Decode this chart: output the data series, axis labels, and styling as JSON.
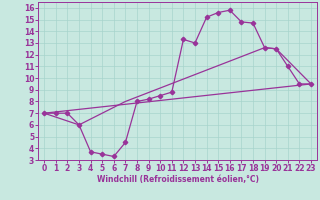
{
  "xlabel": "Windchill (Refroidissement éolien,°C)",
  "bg_color": "#c8e8e0",
  "line_color": "#993399",
  "grid_color": "#a8d4cc",
  "xlim": [
    -0.5,
    23.5
  ],
  "ylim": [
    3,
    16.5
  ],
  "xticks": [
    0,
    1,
    2,
    3,
    4,
    5,
    6,
    7,
    8,
    9,
    10,
    11,
    12,
    13,
    14,
    15,
    16,
    17,
    18,
    19,
    20,
    21,
    22,
    23
  ],
  "yticks": [
    3,
    4,
    5,
    6,
    7,
    8,
    9,
    10,
    11,
    12,
    13,
    14,
    15,
    16
  ],
  "curve1_x": [
    0,
    1,
    2,
    3,
    4,
    5,
    6,
    7,
    8,
    9,
    10,
    11,
    12,
    13,
    14,
    15,
    16,
    17,
    18,
    19,
    20,
    21,
    22,
    23
  ],
  "curve1_y": [
    7.0,
    7.0,
    7.0,
    6.0,
    3.7,
    3.5,
    3.3,
    4.5,
    8.0,
    8.2,
    8.5,
    8.8,
    13.3,
    13.0,
    15.2,
    15.6,
    15.8,
    14.8,
    14.7,
    12.6,
    12.5,
    11.0,
    9.5,
    9.5
  ],
  "curve2_x": [
    0,
    3,
    7,
    19,
    20,
    23
  ],
  "curve2_y": [
    7.0,
    6.0,
    8.0,
    12.6,
    12.5,
    9.5
  ],
  "curve3_x": [
    0,
    23
  ],
  "curve3_y": [
    7.0,
    9.5
  ],
  "lw": 0.9,
  "markersize": 2.3,
  "tick_fontsize": 5.5,
  "xlabel_fontsize": 5.5
}
